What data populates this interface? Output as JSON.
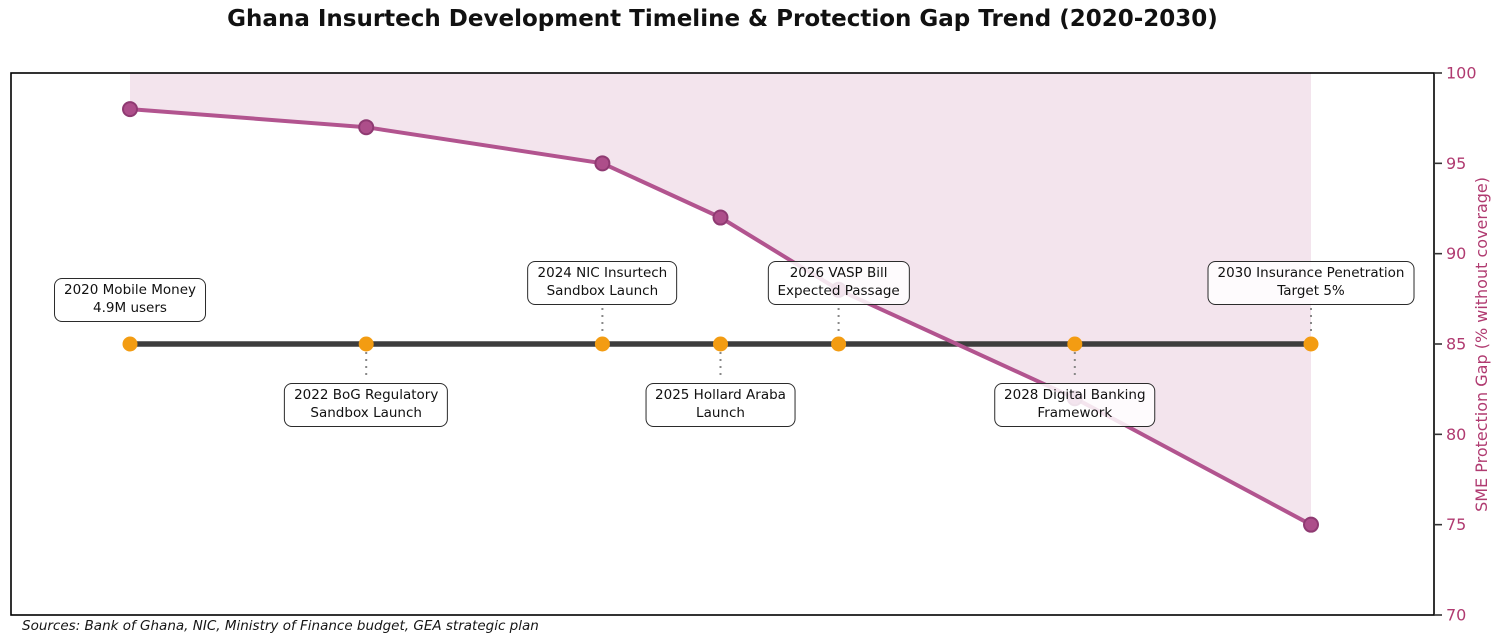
{
  "title": "Ghana Insurtech Development Timeline & Protection Gap Trend (2020-2030)",
  "source_note": "Sources: Bank of Ghana, NIC, Ministry of Finance budget, GEA strategic plan",
  "colors": {
    "gap_line": "#b2548f",
    "gap_marker_fill": "#ad4e8a",
    "gap_marker_edge": "#8f3a72",
    "gap_area_fill": "#b2548f",
    "timeline": "#3d3d3d",
    "event_marker": "#f39c12",
    "axis_text": "#b03a70",
    "tick_mark": "#333333",
    "connector": "#888888",
    "plot_border": "#000000"
  },
  "right_axis": {
    "label": "SME Protection Gap (% without coverage)",
    "ticks": [
      70,
      75,
      80,
      85,
      90,
      95,
      100
    ],
    "ylim": [
      70,
      100
    ]
  },
  "chart_data": {
    "type": "line",
    "title": "Ghana Insurtech Development Timeline & Protection Gap Trend (2020-2030)",
    "x": [
      2020,
      2022,
      2024,
      2025,
      2026,
      2028,
      2030
    ],
    "series": [
      {
        "name": "SME Protection Gap (% without coverage)",
        "values": [
          98,
          97,
          95,
          92,
          88,
          82,
          75
        ],
        "style": "line with circle markers, shaded area filled between line and 100"
      }
    ],
    "timeline": {
      "y_value": 85,
      "marker_years": [
        2020,
        2022,
        2024,
        2025,
        2026,
        2028,
        2030
      ],
      "description": "horizontal dark timeline with orange event markers"
    },
    "xlabel": "",
    "ylabel": "SME Protection Gap (% without coverage)",
    "xlim": [
      2019,
      2031
    ],
    "ylim": [
      70,
      100
    ],
    "yticks_right": [
      70,
      75,
      80,
      85,
      90,
      95,
      100
    ],
    "grid": false,
    "legend_position": "none"
  },
  "events": [
    {
      "year": 2020,
      "line1": "2020 Mobile Money",
      "line2": "4.9M users",
      "position": "above",
      "connector": false
    },
    {
      "year": 2022,
      "line1": "2022 BoG Regulatory",
      "line2": "Sandbox Launch",
      "position": "below",
      "connector": true
    },
    {
      "year": 2024,
      "line1": "2024 NIC Insurtech",
      "line2": "Sandbox Launch",
      "position": "above",
      "connector": true
    },
    {
      "year": 2025,
      "line1": "2025 Hollard Araba",
      "line2": "Launch",
      "position": "below",
      "connector": true
    },
    {
      "year": 2026,
      "line1": "2026 VASP Bill",
      "line2": "Expected Passage",
      "position": "above",
      "connector": true
    },
    {
      "year": 2028,
      "line1": "2028 Digital Banking",
      "line2": "Framework",
      "position": "below",
      "connector": true
    },
    {
      "year": 2030,
      "line1": "2030 Insurance Penetration",
      "line2": "Target 5%",
      "position": "above",
      "connector": true
    }
  ]
}
